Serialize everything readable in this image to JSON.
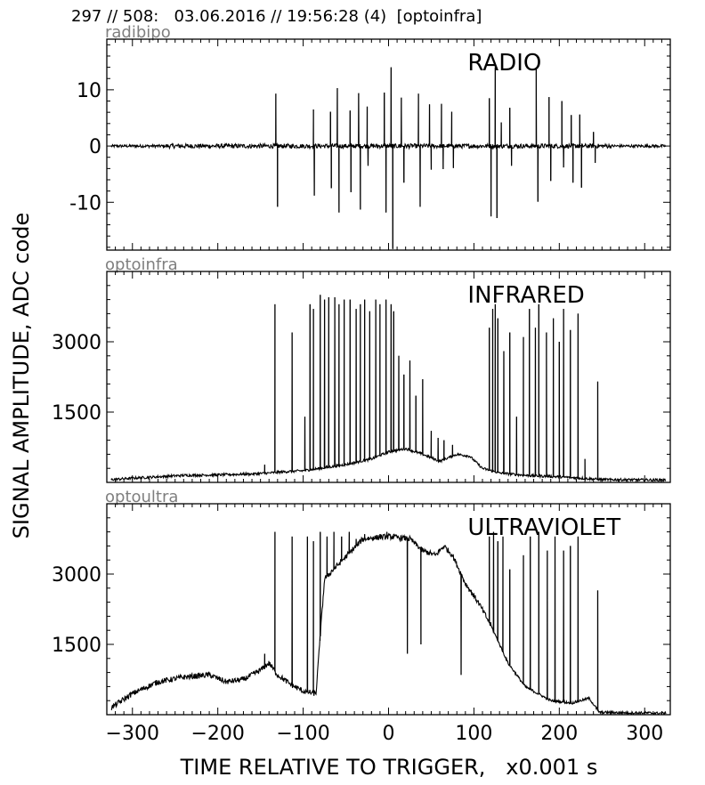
{
  "header": {
    "title": "297 // 508:   03.06.2016 // 19:56:28 (4)  [optoinfra]"
  },
  "labels": {
    "ylabel": "SIGNAL AMPLITUDE,  ADC code",
    "xlabel": "TIME RELATIVE TO TRIGGER,   x0.001 s"
  },
  "chart_data": [
    {
      "type": "line",
      "channel": "radibipo",
      "title": "RADIO",
      "xlim": [
        -330,
        330
      ],
      "ylim": [
        -18.5,
        19
      ],
      "xticks": [
        -300,
        -200,
        -100,
        0,
        100,
        200,
        300
      ],
      "yticks": [
        -10,
        0,
        10
      ],
      "ytick_labels": [
        "-10",
        "0",
        "10"
      ],
      "baseline": 0,
      "spikes": [
        {
          "x": -132,
          "y": 9.3
        },
        {
          "x": -130,
          "y": -10.8
        },
        {
          "x": -88,
          "y": 6.5
        },
        {
          "x": -87,
          "y": -8.8
        },
        {
          "x": -68,
          "y": 6.1
        },
        {
          "x": -67,
          "y": -7.5
        },
        {
          "x": -60,
          "y": 10.3
        },
        {
          "x": -58,
          "y": -11.8
        },
        {
          "x": -45,
          "y": 6.3
        },
        {
          "x": -44,
          "y": -8.2
        },
        {
          "x": -35,
          "y": 9.4
        },
        {
          "x": -33,
          "y": -11.3
        },
        {
          "x": -25,
          "y": 7.0
        },
        {
          "x": -24,
          "y": -3.5
        },
        {
          "x": -5,
          "y": 9.5
        },
        {
          "x": -3,
          "y": -11.8
        },
        {
          "x": 3,
          "y": 14.0
        },
        {
          "x": 5,
          "y": -18.3
        },
        {
          "x": 15,
          "y": 8.6
        },
        {
          "x": 18,
          "y": -6.5
        },
        {
          "x": 35,
          "y": 9.3
        },
        {
          "x": 37,
          "y": -10.8
        },
        {
          "x": 48,
          "y": 7.4
        },
        {
          "x": 50,
          "y": -4.2
        },
        {
          "x": 62,
          "y": 7.5
        },
        {
          "x": 64,
          "y": -4.1
        },
        {
          "x": 74,
          "y": 6.1
        },
        {
          "x": 76,
          "y": -3.9
        },
        {
          "x": 118,
          "y": 8.5
        },
        {
          "x": 120,
          "y": -12.5
        },
        {
          "x": 125,
          "y": 14.0
        },
        {
          "x": 127,
          "y": -12.8
        },
        {
          "x": 132,
          "y": 4.2
        },
        {
          "x": 142,
          "y": 6.8
        },
        {
          "x": 144,
          "y": -3.5
        },
        {
          "x": 173,
          "y": 13.8
        },
        {
          "x": 175,
          "y": -9.9
        },
        {
          "x": 188,
          "y": 8.7
        },
        {
          "x": 190,
          "y": -6.2
        },
        {
          "x": 203,
          "y": 8.0
        },
        {
          "x": 205,
          "y": -3.8
        },
        {
          "x": 214,
          "y": 5.5
        },
        {
          "x": 216,
          "y": -6.5
        },
        {
          "x": 224,
          "y": 5.6
        },
        {
          "x": 226,
          "y": -7.4
        },
        {
          "x": 240,
          "y": 2.5
        },
        {
          "x": 242,
          "y": -3.0
        }
      ]
    },
    {
      "type": "line",
      "channel": "optoinfra",
      "title": "INFRARED",
      "xlim": [
        -330,
        330
      ],
      "ylim": [
        0,
        4500
      ],
      "xticks": [
        -300,
        -200,
        -100,
        0,
        100,
        200,
        300
      ],
      "yticks": [
        1500,
        3000
      ],
      "ytick_labels": [
        "1500",
        "3000"
      ],
      "baseline": [
        {
          "x": -325,
          "y": 60
        },
        {
          "x": -300,
          "y": 90
        },
        {
          "x": -270,
          "y": 120
        },
        {
          "x": -240,
          "y": 150
        },
        {
          "x": -200,
          "y": 160
        },
        {
          "x": -160,
          "y": 180
        },
        {
          "x": -140,
          "y": 200
        },
        {
          "x": -120,
          "y": 230
        },
        {
          "x": -100,
          "y": 250
        },
        {
          "x": -80,
          "y": 300
        },
        {
          "x": -50,
          "y": 380
        },
        {
          "x": -20,
          "y": 500
        },
        {
          "x": 0,
          "y": 650
        },
        {
          "x": 20,
          "y": 720
        },
        {
          "x": 40,
          "y": 600
        },
        {
          "x": 60,
          "y": 450
        },
        {
          "x": 80,
          "y": 600
        },
        {
          "x": 95,
          "y": 560
        },
        {
          "x": 110,
          "y": 300
        },
        {
          "x": 130,
          "y": 200
        },
        {
          "x": 160,
          "y": 150
        },
        {
          "x": 200,
          "y": 120
        },
        {
          "x": 250,
          "y": 60
        },
        {
          "x": 330,
          "y": 50
        }
      ],
      "spikes": [
        {
          "x": -145,
          "y": 380
        },
        {
          "x": -133,
          "y": 3800
        },
        {
          "x": -113,
          "y": 3200
        },
        {
          "x": -98,
          "y": 1400
        },
        {
          "x": -92,
          "y": 3800
        },
        {
          "x": -88,
          "y": 3700
        },
        {
          "x": -80,
          "y": 4000
        },
        {
          "x": -75,
          "y": 3900
        },
        {
          "x": -70,
          "y": 3950
        },
        {
          "x": -63,
          "y": 3950
        },
        {
          "x": -58,
          "y": 3800
        },
        {
          "x": -52,
          "y": 3900
        },
        {
          "x": -45,
          "y": 3900
        },
        {
          "x": -38,
          "y": 3700
        },
        {
          "x": -33,
          "y": 3800
        },
        {
          "x": -28,
          "y": 3900
        },
        {
          "x": -22,
          "y": 3650
        },
        {
          "x": -15,
          "y": 3900
        },
        {
          "x": -10,
          "y": 3800
        },
        {
          "x": -3,
          "y": 3900
        },
        {
          "x": 3,
          "y": 3800
        },
        {
          "x": 6,
          "y": 3650
        },
        {
          "x": 12,
          "y": 2700
        },
        {
          "x": 18,
          "y": 2300
        },
        {
          "x": 25,
          "y": 2600
        },
        {
          "x": 32,
          "y": 1850
        },
        {
          "x": 40,
          "y": 2200
        },
        {
          "x": 50,
          "y": 1100
        },
        {
          "x": 58,
          "y": 950
        },
        {
          "x": 65,
          "y": 900
        },
        {
          "x": 75,
          "y": 800
        },
        {
          "x": 118,
          "y": 3300
        },
        {
          "x": 122,
          "y": 3700
        },
        {
          "x": 125,
          "y": 3800
        },
        {
          "x": 128,
          "y": 3500
        },
        {
          "x": 135,
          "y": 2800
        },
        {
          "x": 142,
          "y": 3200
        },
        {
          "x": 150,
          "y": 1400
        },
        {
          "x": 158,
          "y": 3100
        },
        {
          "x": 165,
          "y": 3700
        },
        {
          "x": 172,
          "y": 3300
        },
        {
          "x": 176,
          "y": 3800
        },
        {
          "x": 185,
          "y": 3200
        },
        {
          "x": 193,
          "y": 3500
        },
        {
          "x": 200,
          "y": 3000
        },
        {
          "x": 205,
          "y": 3700
        },
        {
          "x": 213,
          "y": 3250
        },
        {
          "x": 222,
          "y": 3600
        },
        {
          "x": 230,
          "y": 500
        },
        {
          "x": 245,
          "y": 2150
        }
      ]
    },
    {
      "type": "line",
      "channel": "optoultra",
      "title": "ULTRAVIOLET",
      "xlim": [
        -330,
        330
      ],
      "ylim": [
        0,
        4500
      ],
      "xticks": [
        -300,
        -200,
        -100,
        0,
        100,
        200,
        300
      ],
      "yticks": [
        1500,
        3000
      ],
      "ytick_labels": [
        "1500",
        "3000"
      ],
      "baseline": [
        {
          "x": -325,
          "y": 150
        },
        {
          "x": -300,
          "y": 450
        },
        {
          "x": -270,
          "y": 700
        },
        {
          "x": -240,
          "y": 800
        },
        {
          "x": -210,
          "y": 850
        },
        {
          "x": -190,
          "y": 700
        },
        {
          "x": -170,
          "y": 750
        },
        {
          "x": -150,
          "y": 950
        },
        {
          "x": -140,
          "y": 1100
        },
        {
          "x": -130,
          "y": 850
        },
        {
          "x": -115,
          "y": 650
        },
        {
          "x": -100,
          "y": 500
        },
        {
          "x": -85,
          "y": 450
        },
        {
          "x": -75,
          "y": 2900
        },
        {
          "x": -30,
          "y": 3750
        },
        {
          "x": 0,
          "y": 3800
        },
        {
          "x": 25,
          "y": 3750
        },
        {
          "x": 40,
          "y": 3500
        },
        {
          "x": 55,
          "y": 3400
        },
        {
          "x": 65,
          "y": 3600
        },
        {
          "x": 75,
          "y": 3400
        },
        {
          "x": 90,
          "y": 2800
        },
        {
          "x": 105,
          "y": 2400
        },
        {
          "x": 120,
          "y": 1900
        },
        {
          "x": 140,
          "y": 1100
        },
        {
          "x": 160,
          "y": 600
        },
        {
          "x": 190,
          "y": 300
        },
        {
          "x": 215,
          "y": 250
        },
        {
          "x": 235,
          "y": 350
        },
        {
          "x": 247,
          "y": 50
        },
        {
          "x": 330,
          "y": 30
        }
      ],
      "spikes": [
        {
          "x": -145,
          "y": 1300
        },
        {
          "x": -133,
          "y": 3900
        },
        {
          "x": -113,
          "y": 3800
        },
        {
          "x": -95,
          "y": 3800
        },
        {
          "x": -88,
          "y": 3700
        },
        {
          "x": -80,
          "y": 3900
        },
        {
          "x": -72,
          "y": 3800
        },
        {
          "x": -64,
          "y": 3900
        },
        {
          "x": -55,
          "y": 3800
        },
        {
          "x": -46,
          "y": 3900
        },
        {
          "x": -38,
          "y": 3750
        },
        {
          "x": -28,
          "y": 3850
        },
        {
          "x": -18,
          "y": 3800
        },
        {
          "x": -10,
          "y": 3850
        },
        {
          "x": -2,
          "y": 3900
        },
        {
          "x": 6,
          "y": 3850
        },
        {
          "x": 118,
          "y": 3800
        },
        {
          "x": 123,
          "y": 3900
        },
        {
          "x": 128,
          "y": 3700
        },
        {
          "x": 134,
          "y": 3800
        },
        {
          "x": 142,
          "y": 3100
        },
        {
          "x": 158,
          "y": 3400
        },
        {
          "x": 166,
          "y": 3800
        },
        {
          "x": 176,
          "y": 3900
        },
        {
          "x": 186,
          "y": 3500
        },
        {
          "x": 195,
          "y": 3800
        },
        {
          "x": 205,
          "y": 3500
        },
        {
          "x": 213,
          "y": 3600
        },
        {
          "x": 222,
          "y": 3800
        },
        {
          "x": 245,
          "y": 2650
        }
      ],
      "dips": [
        {
          "x": 22,
          "y": 1300
        },
        {
          "x": 38,
          "y": 1500
        },
        {
          "x": 85,
          "y": 850
        }
      ]
    }
  ]
}
